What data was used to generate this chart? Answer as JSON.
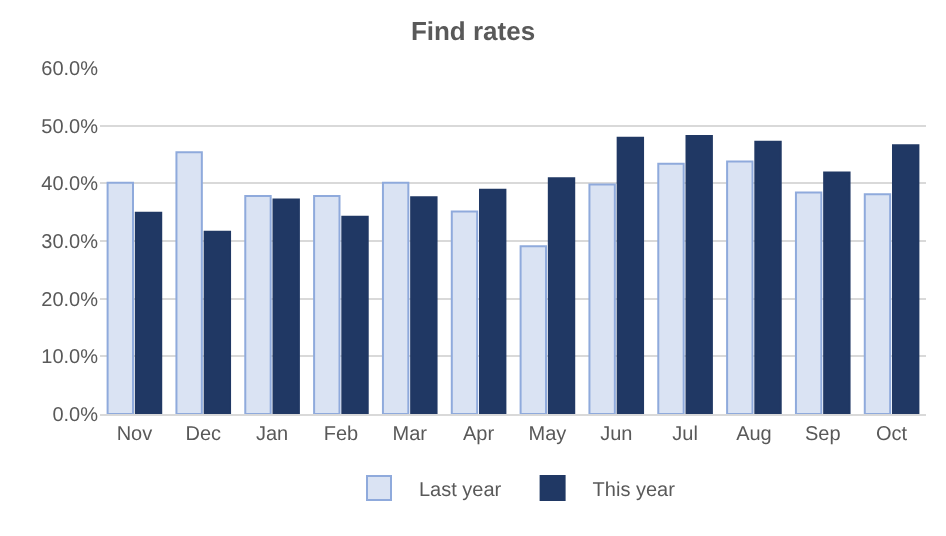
{
  "chart_data": {
    "type": "bar",
    "title": "Find rates",
    "categories": [
      "Nov",
      "Dec",
      "Jan",
      "Feb",
      "Mar",
      "Apr",
      "May",
      "Jun",
      "Jul",
      "Aug",
      "Sep",
      "Oct"
    ],
    "series": [
      {
        "name": "Last year",
        "color": "#dae3f3",
        "values": [
          40.1,
          45.4,
          37.8,
          37.8,
          40.1,
          35.1,
          29.1,
          39.8,
          43.4,
          43.8,
          38.4,
          38.1
        ]
      },
      {
        "name": "This year",
        "color": "#203864",
        "values": [
          34.9,
          31.6,
          37.2,
          34.2,
          37.6,
          38.9,
          40.9,
          47.9,
          48.2,
          47.2,
          41.9,
          46.6
        ]
      }
    ],
    "ylim": [
      0,
      60
    ],
    "yticks": [
      {
        "value": 0,
        "label": "0.0%"
      },
      {
        "value": 10,
        "label": "10.0%"
      },
      {
        "value": 20,
        "label": "20.0%"
      },
      {
        "value": 30,
        "label": "30.0%"
      },
      {
        "value": 40,
        "label": "40.0%"
      },
      {
        "value": 50,
        "label": "50.0%"
      },
      {
        "value": 60,
        "label": "60.0%"
      }
    ],
    "grid": "y",
    "legend": "bottom"
  }
}
